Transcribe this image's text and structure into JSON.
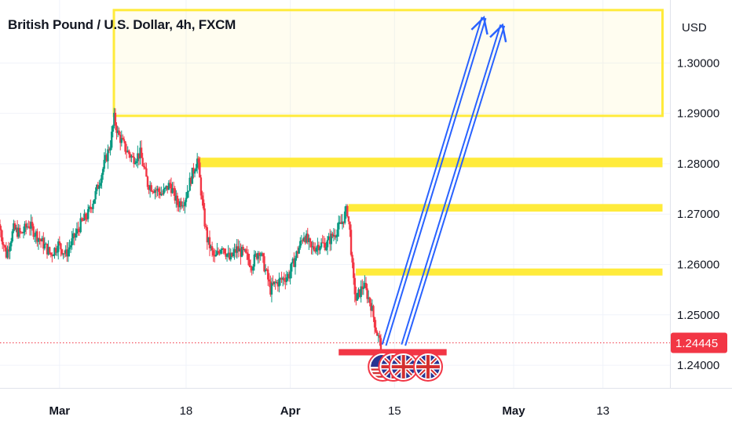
{
  "header": {
    "title": "British Pound / U.S. Dollar, 4h, FXCM"
  },
  "price_axis": {
    "currency": "USD"
  },
  "colors": {
    "up": "#089981",
    "down": "#f23645",
    "zone": "#ffeb3b",
    "arrow": "#2962ff",
    "grid": "#f0f3fa"
  },
  "chart_data": {
    "type": "candlestick",
    "title": "British Pound / U.S. Dollar, 4h, FXCM",
    "ylim": [
      1.2355,
      1.3125
    ],
    "y_ticks": [
      1.24,
      1.25,
      1.26,
      1.27,
      1.28,
      1.29,
      1.3
    ],
    "y_tick_labels": [
      "1.24000",
      "1.25000",
      "1.26000",
      "1.27000",
      "1.28000",
      "1.29000",
      "1.30000"
    ],
    "x_ticks": [
      {
        "label": "Mar",
        "day": 0
      },
      {
        "label": "18",
        "day": 17
      },
      {
        "label": "Apr",
        "day": 31
      },
      {
        "label": "15",
        "day": 45
      },
      {
        "label": "May",
        "day": 61
      },
      {
        "label": "13",
        "day": 73
      }
    ],
    "xlim_days": [
      -8,
      82
    ],
    "last_price": 1.24445,
    "last_price_label": "1.24445",
    "price_path": [
      [
        -8,
        1.268
      ],
      [
        -7,
        1.262
      ],
      [
        -6,
        1.267
      ],
      [
        -5,
        1.266
      ],
      [
        -4,
        1.268
      ],
      [
        -3,
        1.266
      ],
      [
        -2,
        1.264
      ],
      [
        -1,
        1.262
      ],
      [
        0,
        1.264
      ],
      [
        1,
        1.262
      ],
      [
        2,
        1.265
      ],
      [
        3,
        1.268
      ],
      [
        4,
        1.27
      ],
      [
        5,
        1.274
      ],
      [
        6,
        1.279
      ],
      [
        7,
        1.284
      ],
      [
        7.5,
        1.289
      ],
      [
        8,
        1.286
      ],
      [
        9,
        1.283
      ],
      [
        10,
        1.281
      ],
      [
        11,
        1.282
      ],
      [
        12,
        1.276
      ],
      [
        13,
        1.275
      ],
      [
        14,
        1.274
      ],
      [
        15,
        1.276
      ],
      [
        16,
        1.272
      ],
      [
        17,
        1.273
      ],
      [
        18,
        1.278
      ],
      [
        18.7,
        1.281
      ],
      [
        19.5,
        1.27
      ],
      [
        20,
        1.265
      ],
      [
        21,
        1.261
      ],
      [
        22,
        1.264
      ],
      [
        23,
        1.261
      ],
      [
        24,
        1.263
      ],
      [
        25,
        1.262
      ],
      [
        26,
        1.26
      ],
      [
        27,
        1.263
      ],
      [
        28,
        1.258
      ],
      [
        28.5,
        1.255
      ],
      [
        29,
        1.256
      ],
      [
        30,
        1.257
      ],
      [
        31,
        1.258
      ],
      [
        32,
        1.262
      ],
      [
        33,
        1.266
      ],
      [
        34,
        1.263
      ],
      [
        35,
        1.264
      ],
      [
        36,
        1.264
      ],
      [
        37,
        1.266
      ],
      [
        38,
        1.268
      ],
      [
        38.8,
        1.271
      ],
      [
        39.2,
        1.266
      ],
      [
        39.6,
        1.257
      ],
      [
        40,
        1.253
      ],
      [
        41,
        1.256
      ],
      [
        42,
        1.252
      ],
      [
        42.7,
        1.247
      ],
      [
        43.3,
        1.244
      ]
    ],
    "zones": [
      {
        "y_low": 1.2895,
        "y_high": 1.3105,
        "day_start": 7.3,
        "day_end": 81,
        "style": "box"
      },
      {
        "y_low": 1.2793,
        "y_high": 1.2812,
        "day_start": 18.5,
        "day_end": 81,
        "style": "band"
      },
      {
        "y_low": 1.2705,
        "y_high": 1.272,
        "day_start": 38.8,
        "day_end": 81,
        "style": "band"
      },
      {
        "y_low": 1.2578,
        "y_high": 1.2592,
        "day_start": 39.8,
        "day_end": 81,
        "style": "band"
      }
    ],
    "support_band": {
      "y_low": 1.242,
      "y_high": 1.2432,
      "day_start": 37.5,
      "day_end": 52
    },
    "arrows": [
      {
        "from": [
          43.6,
          1.244
        ],
        "to": [
          57,
          1.309
        ]
      },
      {
        "from": [
          46.2,
          1.244
        ],
        "to": [
          59.5,
          1.3075
        ]
      }
    ],
    "event_icons": [
      {
        "type": "us-flag",
        "day": 43.4
      },
      {
        "type": "uk-flag",
        "day": 44.8
      },
      {
        "type": "uk-flag",
        "day": 46.2
      },
      {
        "type": "uk-flag",
        "day": 49.5
      }
    ]
  }
}
